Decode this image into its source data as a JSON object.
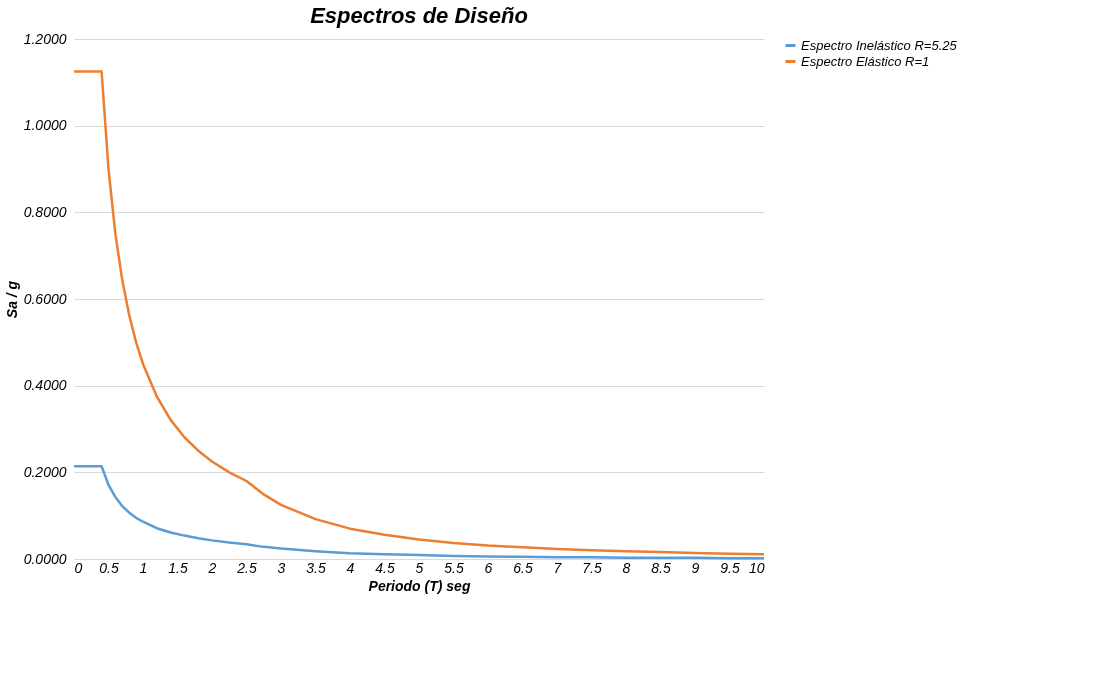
{
  "chart_data": {
    "type": "line",
    "title": "Espectros de Diseño",
    "xlabel": "Periodo (T) seg",
    "ylabel": "Sa / g",
    "x": [
      0,
      0.4,
      0.5,
      0.6,
      0.7,
      0.8,
      0.9,
      1.0,
      1.2,
      1.4,
      1.6,
      1.8,
      2.0,
      2.25,
      2.5,
      2.75,
      3,
      3.5,
      4,
      4.5,
      5,
      5.5,
      6,
      6.5,
      7,
      7.5,
      8,
      8.5,
      9,
      9.5,
      10
    ],
    "series": [
      {
        "name": "Espectro Inelástico R=5.25",
        "color": "#5b9bd5",
        "values": [
          0.214,
          0.214,
          0.171,
          0.143,
          0.122,
          0.107,
          0.095,
          0.086,
          0.071,
          0.061,
          0.054,
          0.048,
          0.043,
          0.038,
          0.034,
          0.028,
          0.024,
          0.018,
          0.013,
          0.011,
          0.009,
          0.007,
          0.006,
          0.005,
          0.004,
          0.004,
          0.003,
          0.003,
          0.003,
          0.002,
          0.002
        ]
      },
      {
        "name": "Espectro Elástico R=1",
        "color": "#ed7d31",
        "values": [
          1.125,
          1.125,
          0.9,
          0.75,
          0.643,
          0.563,
          0.5,
          0.45,
          0.375,
          0.321,
          0.281,
          0.25,
          0.225,
          0.2,
          0.18,
          0.149,
          0.125,
          0.092,
          0.07,
          0.056,
          0.045,
          0.037,
          0.031,
          0.027,
          0.023,
          0.02,
          0.018,
          0.016,
          0.014,
          0.012,
          0.011
        ]
      }
    ],
    "xlim": [
      0,
      10
    ],
    "xticks": [
      0,
      0.5,
      1,
      1.5,
      2,
      2.5,
      3,
      3.5,
      4,
      4.5,
      5,
      5.5,
      6,
      6.5,
      7,
      7.5,
      8,
      8.5,
      9,
      9.5,
      10
    ],
    "ylim": [
      0,
      1.2
    ],
    "yticks": [
      {
        "value": 0,
        "label": "0.0000"
      },
      {
        "value": 0.2,
        "label": "0.2000"
      },
      {
        "value": 0.4,
        "label": "0.4000"
      },
      {
        "value": 0.6,
        "label": "0.6000"
      },
      {
        "value": 0.8,
        "label": "0.8000"
      },
      {
        "value": 1.0,
        "label": "1.0000"
      },
      {
        "value": 1.2,
        "label": "1.2000"
      }
    ],
    "grid": "y",
    "legend": "right",
    "marker": "none",
    "line_style": "solid"
  }
}
